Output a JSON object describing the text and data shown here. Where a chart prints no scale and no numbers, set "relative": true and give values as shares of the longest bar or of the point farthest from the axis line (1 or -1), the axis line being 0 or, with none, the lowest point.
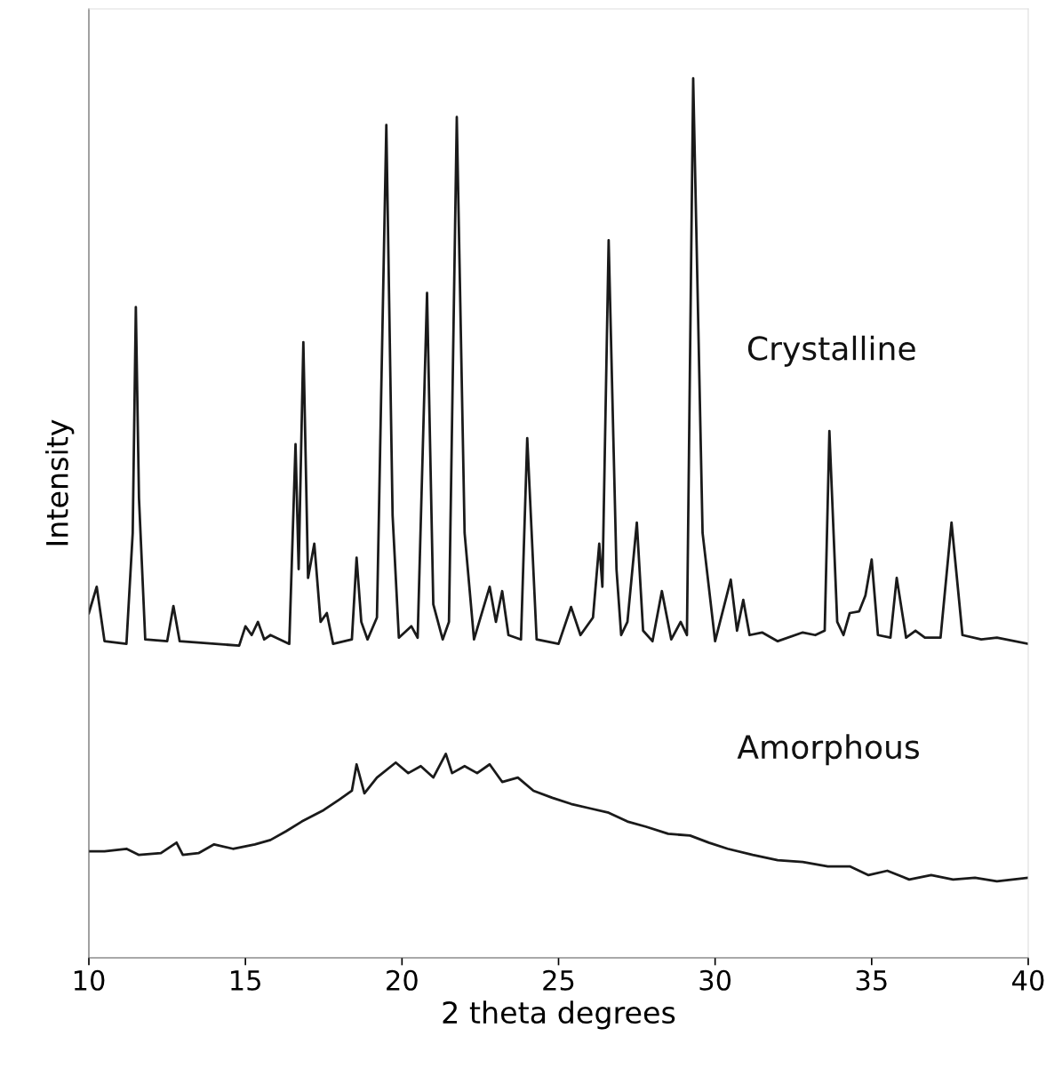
{
  "chart_data": {
    "type": "line",
    "relative": true,
    "xlabel": "2 theta degrees",
    "ylabel": "Intensity",
    "xlim": [
      10,
      40
    ],
    "xticks": [
      10,
      15,
      20,
      25,
      30,
      35,
      40
    ],
    "grid": false,
    "legend": false,
    "tick_labels": "x",
    "marker": "none",
    "line_style": "solid",
    "series": [
      {
        "name": "Crystalline",
        "color": "#1a1a1a",
        "x": [
          10.0,
          10.25,
          10.5,
          11.2,
          11.4,
          11.5,
          11.6,
          11.8,
          12.5,
          12.7,
          12.9,
          14.8,
          15.0,
          15.2,
          15.4,
          15.6,
          15.8,
          16.4,
          16.6,
          16.7,
          16.85,
          17.0,
          17.2,
          17.4,
          17.6,
          17.8,
          18.4,
          18.55,
          18.7,
          18.9,
          19.2,
          19.5,
          19.7,
          19.9,
          20.3,
          20.5,
          20.8,
          21.0,
          21.3,
          21.5,
          21.75,
          22.0,
          22.3,
          22.8,
          23.0,
          23.2,
          23.4,
          23.8,
          24.0,
          24.3,
          25.0,
          25.4,
          25.7,
          26.1,
          26.3,
          26.4,
          26.6,
          26.85,
          27.0,
          27.2,
          27.5,
          27.7,
          28.0,
          28.3,
          28.6,
          28.9,
          29.1,
          29.3,
          29.6,
          30.0,
          30.3,
          30.5,
          30.7,
          30.9,
          31.1,
          31.5,
          32.0,
          32.8,
          33.2,
          33.5,
          33.65,
          33.9,
          34.1,
          34.3,
          34.6,
          34.8,
          35.0,
          35.2,
          35.6,
          35.8,
          36.1,
          36.4,
          36.7,
          37.2,
          37.55,
          37.9,
          38.5,
          39.0,
          40.0
        ],
        "values": [
          0.392,
          0.422,
          0.36,
          0.357,
          0.483,
          0.74,
          0.523,
          0.362,
          0.36,
          0.4,
          0.36,
          0.355,
          0.377,
          0.367,
          0.382,
          0.362,
          0.367,
          0.357,
          0.584,
          0.442,
          0.7,
          0.432,
          0.471,
          0.382,
          0.392,
          0.357,
          0.362,
          0.455,
          0.382,
          0.362,
          0.387,
          0.947,
          0.503,
          0.364,
          0.377,
          0.364,
          0.756,
          0.402,
          0.362,
          0.382,
          0.956,
          0.483,
          0.362,
          0.422,
          0.382,
          0.417,
          0.367,
          0.362,
          0.591,
          0.362,
          0.357,
          0.399,
          0.367,
          0.387,
          0.471,
          0.422,
          0.816,
          0.442,
          0.367,
          0.382,
          0.495,
          0.372,
          0.36,
          0.417,
          0.362,
          0.382,
          0.367,
          1.0,
          0.483,
          0.36,
          0.402,
          0.43,
          0.372,
          0.407,
          0.367,
          0.37,
          0.36,
          0.37,
          0.367,
          0.372,
          0.599,
          0.382,
          0.367,
          0.392,
          0.394,
          0.412,
          0.453,
          0.367,
          0.364,
          0.432,
          0.364,
          0.372,
          0.364,
          0.364,
          0.495,
          0.367,
          0.362,
          0.364,
          0.357
        ]
      },
      {
        "name": "Amorphous",
        "color": "#1a1a1a",
        "x": [
          10.0,
          10.5,
          11.2,
          11.6,
          12.3,
          12.8,
          13.0,
          13.5,
          14.0,
          14.6,
          15.3,
          15.8,
          16.3,
          16.8,
          17.5,
          18.0,
          18.4,
          18.55,
          18.8,
          19.2,
          19.8,
          20.2,
          20.6,
          21.0,
          21.4,
          21.6,
          22.0,
          22.4,
          22.8,
          23.2,
          23.7,
          24.2,
          24.8,
          25.4,
          26.0,
          26.6,
          27.2,
          27.8,
          28.5,
          29.2,
          29.8,
          30.4,
          31.2,
          32.0,
          32.8,
          33.6,
          34.3,
          34.9,
          35.5,
          36.2,
          36.9,
          37.6,
          38.3,
          39.0,
          40.0
        ],
        "values": [
          0.121,
          0.121,
          0.124,
          0.117,
          0.119,
          0.131,
          0.117,
          0.119,
          0.129,
          0.124,
          0.129,
          0.134,
          0.144,
          0.155,
          0.168,
          0.18,
          0.19,
          0.22,
          0.187,
          0.205,
          0.222,
          0.21,
          0.218,
          0.205,
          0.232,
          0.21,
          0.218,
          0.21,
          0.22,
          0.2,
          0.205,
          0.19,
          0.182,
          0.175,
          0.17,
          0.165,
          0.155,
          0.149,
          0.141,
          0.139,
          0.131,
          0.124,
          0.117,
          0.111,
          0.109,
          0.104,
          0.104,
          0.094,
          0.099,
          0.089,
          0.094,
          0.089,
          0.091,
          0.087,
          0.091
        ]
      }
    ]
  }
}
